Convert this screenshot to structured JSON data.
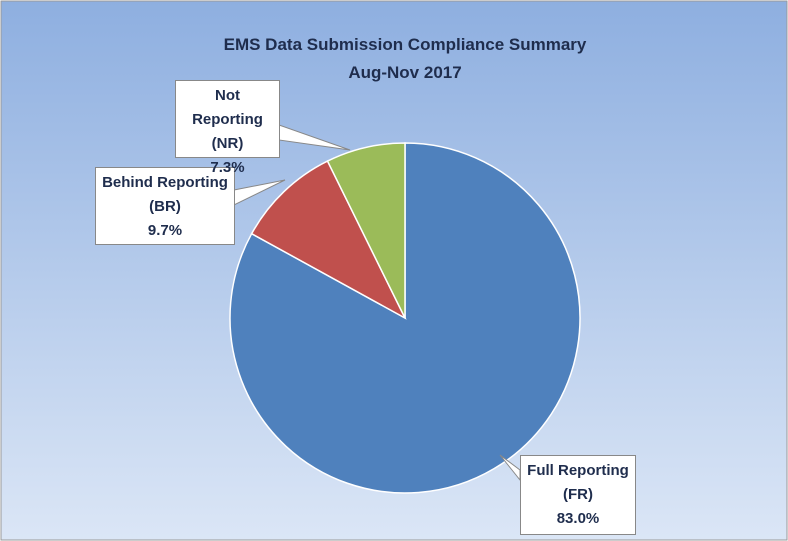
{
  "chart_data": {
    "type": "pie",
    "title": "EMS Data Submission Compliance Summary",
    "subtitle": "Aug-Nov 2017",
    "categories": [
      "Full Reporting (FR)",
      "Behind Reporting (BR)",
      "Not Reporting (NR)"
    ],
    "values": [
      83.0,
      9.7,
      7.3
    ],
    "value_labels": [
      "83.0%",
      "9.7%",
      "7.3%"
    ],
    "colors": [
      "#4f81bd",
      "#c0504d",
      "#9bbb59"
    ]
  }
}
